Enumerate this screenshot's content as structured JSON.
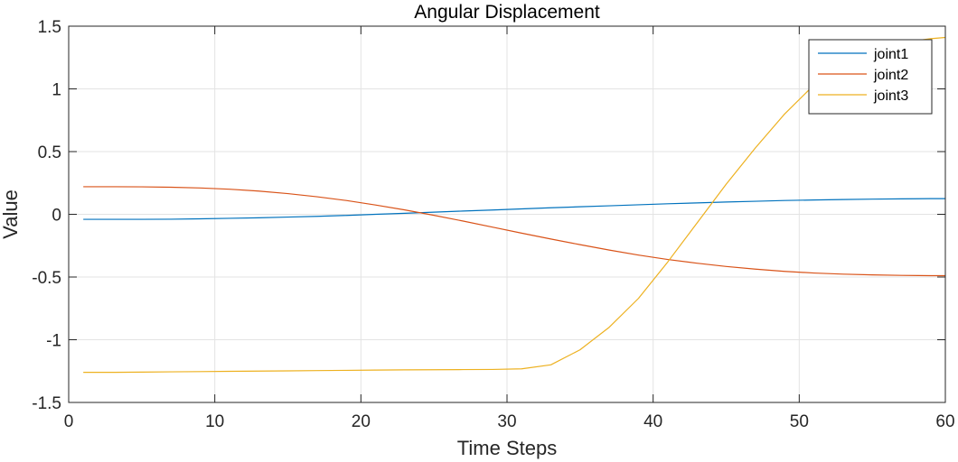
{
  "chart_data": {
    "type": "line",
    "title": "Angular Displacement",
    "xlabel": "Time Steps",
    "ylabel": "Value",
    "xlim": [
      0,
      60
    ],
    "ylim": [
      -1.5,
      1.5
    ],
    "xticks": [
      "0",
      "10",
      "20",
      "30",
      "40",
      "50",
      "60"
    ],
    "yticks": [
      "-1.5",
      "-1",
      "-0.5",
      "0",
      "0.5",
      "1",
      "1.5"
    ],
    "grid": true,
    "legend_position": "top-right",
    "x": [
      1,
      3,
      5,
      7,
      9,
      11,
      13,
      15,
      17,
      19,
      21,
      23,
      25,
      27,
      29,
      31,
      33,
      35,
      37,
      39,
      41,
      43,
      45,
      47,
      49,
      51,
      53,
      55,
      57,
      59,
      60
    ],
    "series": [
      {
        "name": "joint1",
        "color": "#0072BD",
        "values": [
          -0.04,
          -0.04,
          -0.04,
          -0.039,
          -0.036,
          -0.032,
          -0.028,
          -0.022,
          -0.016,
          -0.009,
          0.0,
          0.008,
          0.017,
          0.026,
          0.034,
          0.043,
          0.052,
          0.06,
          0.068,
          0.076,
          0.084,
          0.091,
          0.098,
          0.104,
          0.11,
          0.114,
          0.118,
          0.121,
          0.123,
          0.125,
          0.125
        ]
      },
      {
        "name": "joint2",
        "color": "#D95319",
        "values": [
          0.22,
          0.22,
          0.219,
          0.216,
          0.21,
          0.2,
          0.185,
          0.165,
          0.14,
          0.11,
          0.074,
          0.035,
          -0.008,
          -0.054,
          -0.102,
          -0.15,
          -0.197,
          -0.242,
          -0.285,
          -0.325,
          -0.36,
          -0.39,
          -0.416,
          -0.437,
          -0.455,
          -0.468,
          -0.477,
          -0.483,
          -0.487,
          -0.489,
          -0.489
        ]
      },
      {
        "name": "joint3",
        "color": "#EDB120",
        "values": [
          -1.26,
          -1.26,
          -1.258,
          -1.256,
          -1.254,
          -1.252,
          -1.25,
          -1.248,
          -1.246,
          -1.244,
          -1.242,
          -1.24,
          -1.239,
          -1.238,
          -1.237,
          -1.232,
          -1.2,
          -1.08,
          -0.9,
          -0.67,
          -0.38,
          -0.07,
          0.24,
          0.53,
          0.8,
          1.03,
          1.2,
          1.31,
          1.37,
          1.4,
          1.41
        ]
      }
    ]
  }
}
